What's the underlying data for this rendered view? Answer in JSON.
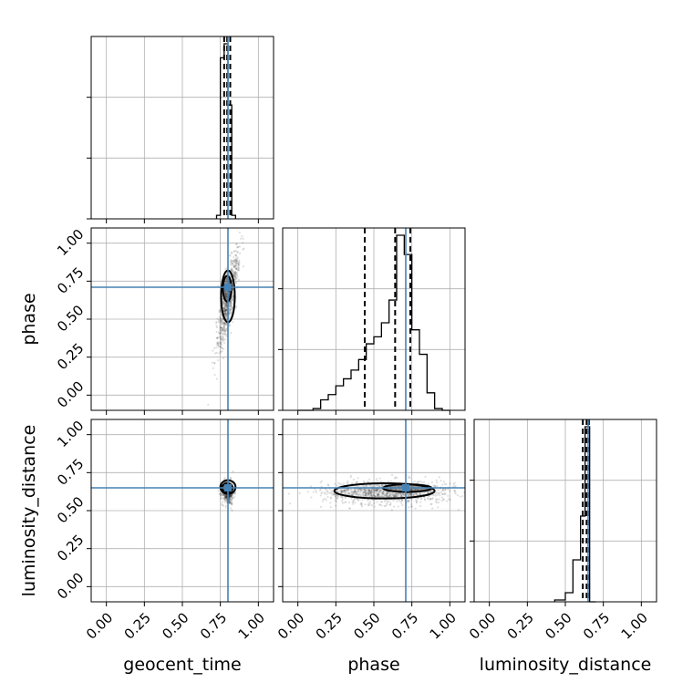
{
  "chart_data": {
    "type": "scatter",
    "title": "",
    "grid": true,
    "parameters": [
      "geocent_time",
      "phase",
      "luminosity_distance"
    ],
    "truths": {
      "geocent_time": 0.8,
      "phase": 0.71,
      "luminosity_distance": 0.65
    },
    "ticks": {
      "values": [
        0.0,
        0.25,
        0.5,
        0.75,
        1.0
      ],
      "labels": [
        "0.00",
        "0.25",
        "0.50",
        "0.75",
        "1.00"
      ],
      "lim": [
        -0.1,
        1.1
      ]
    },
    "colors": {
      "truth": "#4682b4",
      "samples": "#000000",
      "grid": "#b0b0b0"
    },
    "diagonal": [
      {
        "parameter": "geocent_time",
        "bin_edges": [
          0.725,
          0.75,
          0.775,
          0.8,
          0.825,
          0.85
        ],
        "counts": [
          0.02,
          0.92,
          1.0,
          0.65,
          0.02
        ],
        "quantiles": [
          0.775,
          0.795,
          0.815
        ]
      },
      {
        "parameter": "phase",
        "bin_edges": [
          0.0,
          0.05,
          0.1,
          0.15,
          0.2,
          0.25,
          0.3,
          0.35,
          0.4,
          0.45,
          0.5,
          0.55,
          0.6,
          0.65,
          0.7,
          0.75,
          0.8,
          0.85,
          0.9,
          0.95,
          1.0
        ],
        "counts": [
          0.0,
          0.0,
          0.01,
          0.06,
          0.09,
          0.14,
          0.18,
          0.23,
          0.29,
          0.38,
          0.42,
          0.5,
          0.63,
          1.0,
          0.89,
          0.46,
          0.32,
          0.1,
          0.01,
          0.0
        ],
        "quantiles": [
          0.44,
          0.64,
          0.74
        ]
      },
      {
        "parameter": "luminosity_distance",
        "bin_edges": [
          0.43,
          0.5,
          0.55,
          0.6,
          0.63,
          0.66,
          0.7
        ],
        "counts": [
          0.01,
          0.05,
          0.23,
          0.47,
          0.96,
          0.0
        ],
        "quantiles": [
          0.615,
          0.64,
          0.655
        ]
      }
    ],
    "pairs": [
      {
        "x": "geocent_time",
        "y": "phase",
        "cloud": {
          "cx": 0.8,
          "cy": 0.62,
          "sx": 0.02,
          "sy": 0.18,
          "rotate_deg": -10,
          "n": 650
        },
        "contours": [
          {
            "cx": 0.795,
            "cy": 0.7,
            "rx": 0.028,
            "ry": 0.085
          },
          {
            "cx": 0.8,
            "cy": 0.65,
            "rx": 0.045,
            "ry": 0.17
          }
        ]
      },
      {
        "x": "geocent_time",
        "y": "luminosity_distance",
        "cloud": {
          "cx": 0.8,
          "cy": 0.62,
          "sx": 0.02,
          "sy": 0.04,
          "rotate_deg": 0,
          "n": 450
        },
        "contours": [
          {
            "cx": 0.795,
            "cy": 0.65,
            "rx": 0.035,
            "ry": 0.03
          },
          {
            "cx": 0.8,
            "cy": 0.655,
            "rx": 0.05,
            "ry": 0.045
          }
        ]
      },
      {
        "x": "phase",
        "y": "luminosity_distance",
        "cloud": {
          "cx": 0.6,
          "cy": 0.62,
          "sx": 0.22,
          "sy": 0.04,
          "rotate_deg": 0,
          "n": 900
        },
        "contours": [
          {
            "cx": 0.72,
            "cy": 0.648,
            "rx": 0.16,
            "ry": 0.025
          },
          {
            "cx": 0.57,
            "cy": 0.63,
            "rx": 0.33,
            "ry": 0.05
          }
        ]
      }
    ]
  }
}
